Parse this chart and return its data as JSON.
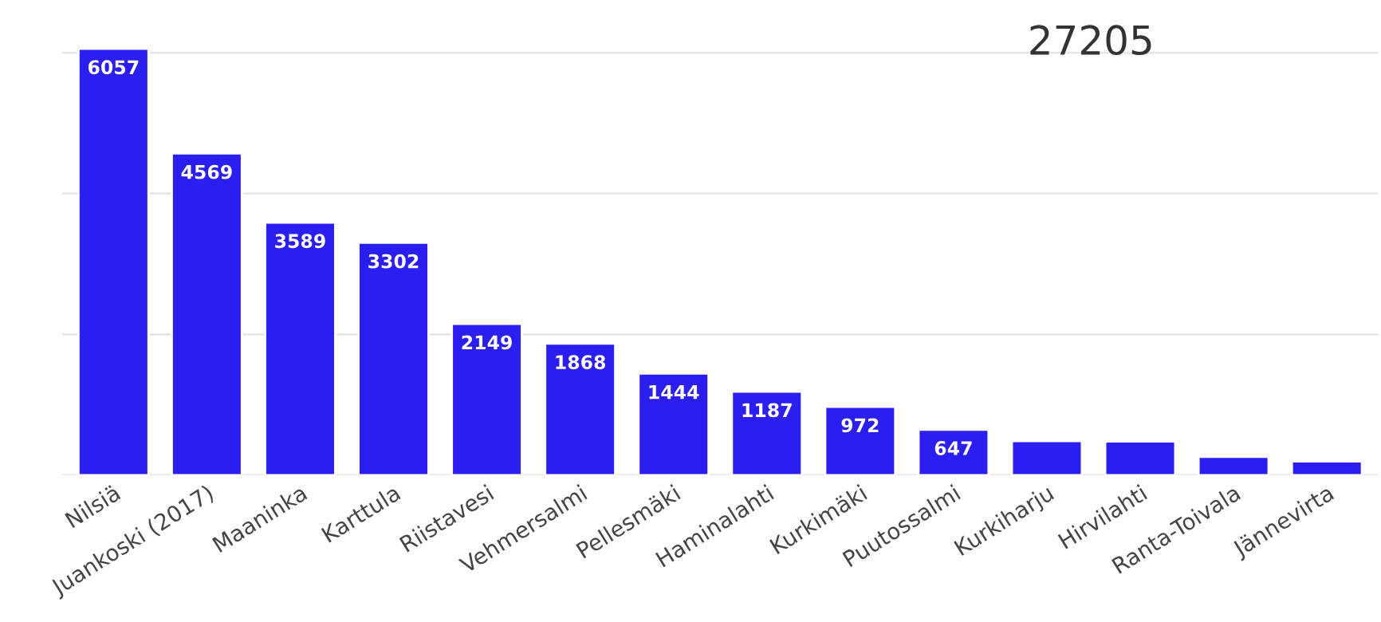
{
  "chart_data": {
    "type": "bar",
    "categories": [
      "Nilsiä",
      "Juankoski (2017)",
      "Maaninka",
      "Karttula",
      "Riistavesi",
      "Vehmersalmi",
      "Pellesmäki",
      "Haminalahti",
      "Kurkimäki",
      "Puutossalmi",
      "Kurkiharju",
      "Hirvilahti",
      "Ranta-Toivala",
      "Jännevirta"
    ],
    "values": [
      6057,
      4569,
      3589,
      3302,
      2149,
      1868,
      1444,
      1187,
      972,
      647,
      485,
      480,
      260,
      196
    ],
    "value_labels": [
      "6057",
      "4569",
      "3589",
      "3302",
      "2149",
      "1868",
      "1444",
      "1187",
      "972",
      "647",
      null,
      null,
      null,
      null
    ],
    "color": "#2b1ef0",
    "yticks": [
      {
        "value": 0,
        "label": null
      },
      {
        "value": 2000,
        "label": null
      },
      {
        "value": 4000,
        "label": null
      },
      {
        "value": 6000,
        "label": null
      }
    ],
    "tick_labels": "x",
    "grid": "y",
    "annotations": [
      "27205"
    ]
  }
}
